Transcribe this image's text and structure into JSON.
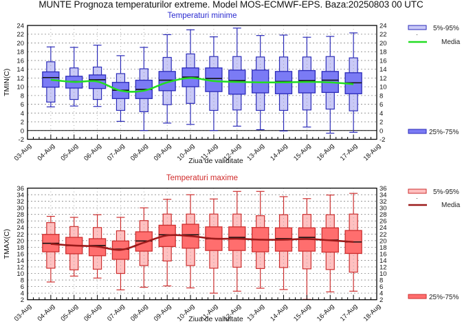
{
  "title": "MUNTE  Prognoza temperaturilor extreme.  Model MOS-ECMWF-EPS. Baza:20250803 00 UTC",
  "chart_data": [
    {
      "type": "boxplot",
      "id": "tmin",
      "title": "Temperaturi minime",
      "title_color": "#2a2ad0",
      "xlabel": "Ziua de validitate",
      "ylabel": "TMIN(C)",
      "ylim": [
        -2,
        24
      ],
      "yticks": [
        -2,
        0,
        2,
        4,
        6,
        8,
        10,
        12,
        14,
        16,
        18,
        20,
        22,
        24
      ],
      "xtick_labels": [
        "03-Aug",
        "04-Aug",
        "05-Aug",
        "06-Aug",
        "07-Aug",
        "08-Aug",
        "09-Aug",
        "10-Aug",
        "11-Aug",
        "12-Aug",
        "13-Aug",
        "14-Aug",
        "15-Aug",
        "16-Aug",
        "17-Aug",
        "18-Aug"
      ],
      "grid": true,
      "colors": {
        "box": "#7b7bf5",
        "box_edge": "#2a2ab8",
        "p5p95": "#c9c9f7",
        "mean_line": "#22dd22",
        "median": "#111111"
      },
      "legend": {
        "p5p95": "5%-95%",
        "mean": "Media",
        "iqr": "25%-75%",
        "placement": "right"
      },
      "categories": [
        "04-Aug",
        "05-Aug",
        "06-Aug",
        "07-Aug",
        "08-Aug",
        "09-Aug",
        "10-Aug",
        "11-Aug",
        "12-Aug",
        "13-Aug",
        "14-Aug",
        "15-Aug",
        "16-Aug",
        "17-Aug"
      ],
      "min": [
        5.4,
        5.6,
        5.5,
        2.1,
        0.0,
        1.7,
        1.4,
        0.0,
        1.0,
        0.2,
        -0.1,
        0.8,
        -0.6,
        -0.4
      ],
      "p5": [
        6.5,
        7.1,
        7.1,
        4.6,
        4.3,
        5.9,
        6.2,
        4.6,
        4.7,
        4.6,
        4.6,
        4.7,
        4.9,
        4.5
      ],
      "q1": [
        9.9,
        9.7,
        9.6,
        7.3,
        7.3,
        9.1,
        10.0,
        8.9,
        8.3,
        8.6,
        8.4,
        8.6,
        8.7,
        8.4
      ],
      "median": [
        12.1,
        11.2,
        11.6,
        9.2,
        9.4,
        11.5,
        12.2,
        11.9,
        11.4,
        11.0,
        11.2,
        11.4,
        11.5,
        10.9
      ],
      "q3": [
        13.4,
        12.4,
        12.7,
        11.0,
        11.5,
        13.5,
        14.3,
        14.3,
        13.8,
        13.8,
        13.5,
        13.7,
        13.5,
        13.2
      ],
      "p95": [
        15.7,
        14.3,
        14.5,
        13.0,
        14.1,
        16.7,
        17.5,
        16.9,
        16.9,
        16.8,
        16.8,
        16.8,
        16.9,
        16.6
      ],
      "max": [
        19.1,
        19.0,
        19.5,
        17.1,
        19.0,
        21.9,
        23.0,
        21.4,
        23.4,
        21.7,
        21.8,
        21.3,
        21.5,
        22.3
      ],
      "mean": [
        11.6,
        11.1,
        11.2,
        9.1,
        9.1,
        11.0,
        12.0,
        11.3,
        11.1,
        11.0,
        11.0,
        11.1,
        11.0,
        10.6
      ]
    },
    {
      "type": "boxplot",
      "id": "tmax",
      "title": "Temperaturi maxime",
      "title_color": "#d02a2a",
      "xlabel": "Ziua de validitate",
      "ylabel": "TMAX(C)",
      "ylim": [
        2,
        36
      ],
      "yticks": [
        2,
        4,
        6,
        8,
        10,
        12,
        14,
        16,
        18,
        20,
        22,
        24,
        26,
        28,
        30,
        32,
        34,
        36
      ],
      "xtick_labels": [
        "03-Aug",
        "04-Aug",
        "05-Aug",
        "06-Aug",
        "07-Aug",
        "08-Aug",
        "09-Aug",
        "10-Aug",
        "11-Aug",
        "12-Aug",
        "13-Aug",
        "14-Aug",
        "15-Aug",
        "16-Aug",
        "17-Aug",
        "18-Aug"
      ],
      "grid": true,
      "colors": {
        "box": "#ff6e6e",
        "box_edge": "#cc2e2e",
        "p5p95": "#ffc0c0",
        "mean_line": "#9b1a1a",
        "median": "#111111"
      },
      "legend": {
        "p5p95": "5%-95%",
        "mean": "Media",
        "iqr": "25%-75%",
        "placement": "right"
      },
      "categories": [
        "04-Aug",
        "05-Aug",
        "06-Aug",
        "07-Aug",
        "08-Aug",
        "09-Aug",
        "10-Aug",
        "11-Aug",
        "12-Aug",
        "13-Aug",
        "14-Aug",
        "15-Aug",
        "16-Aug",
        "17-Aug"
      ],
      "min": [
        7.4,
        9.2,
        8.6,
        5.0,
        5.8,
        6.2,
        5.6,
        4.0,
        4.6,
        5.5,
        5.1,
        2.1,
        4.4,
        4.6
      ],
      "p5": [
        11.6,
        11.1,
        11.3,
        10.0,
        12.4,
        13.8,
        12.4,
        11.6,
        11.9,
        11.5,
        11.8,
        11.4,
        11.2,
        10.4
      ],
      "q1": [
        16.6,
        16.0,
        15.4,
        14.3,
        16.8,
        18.2,
        17.7,
        17.0,
        17.0,
        16.6,
        16.8,
        16.8,
        16.5,
        16.1
      ],
      "median": [
        19.2,
        18.5,
        18.5,
        17.4,
        19.9,
        21.8,
        21.8,
        20.6,
        21.0,
        20.3,
        20.6,
        21.0,
        20.2,
        19.6
      ],
      "q3": [
        21.9,
        21.0,
        20.6,
        19.9,
        22.7,
        24.7,
        25.0,
        24.2,
        24.2,
        24.0,
        23.9,
        23.9,
        23.9,
        23.1
      ],
      "p95": [
        25.5,
        24.3,
        24.0,
        23.0,
        26.1,
        28.1,
        28.1,
        28.1,
        28.1,
        27.6,
        27.9,
        28.0,
        27.9,
        28.1
      ],
      "max": [
        27.4,
        27.1,
        27.9,
        27.1,
        30.0,
        32.6,
        34.0,
        32.7,
        35.0,
        35.0,
        33.4,
        32.8,
        33.9,
        34.4
      ],
      "mean": [
        19.0,
        18.5,
        18.2,
        17.2,
        19.4,
        21.6,
        21.4,
        20.6,
        20.6,
        20.3,
        20.3,
        20.5,
        20.1,
        19.6
      ]
    }
  ]
}
